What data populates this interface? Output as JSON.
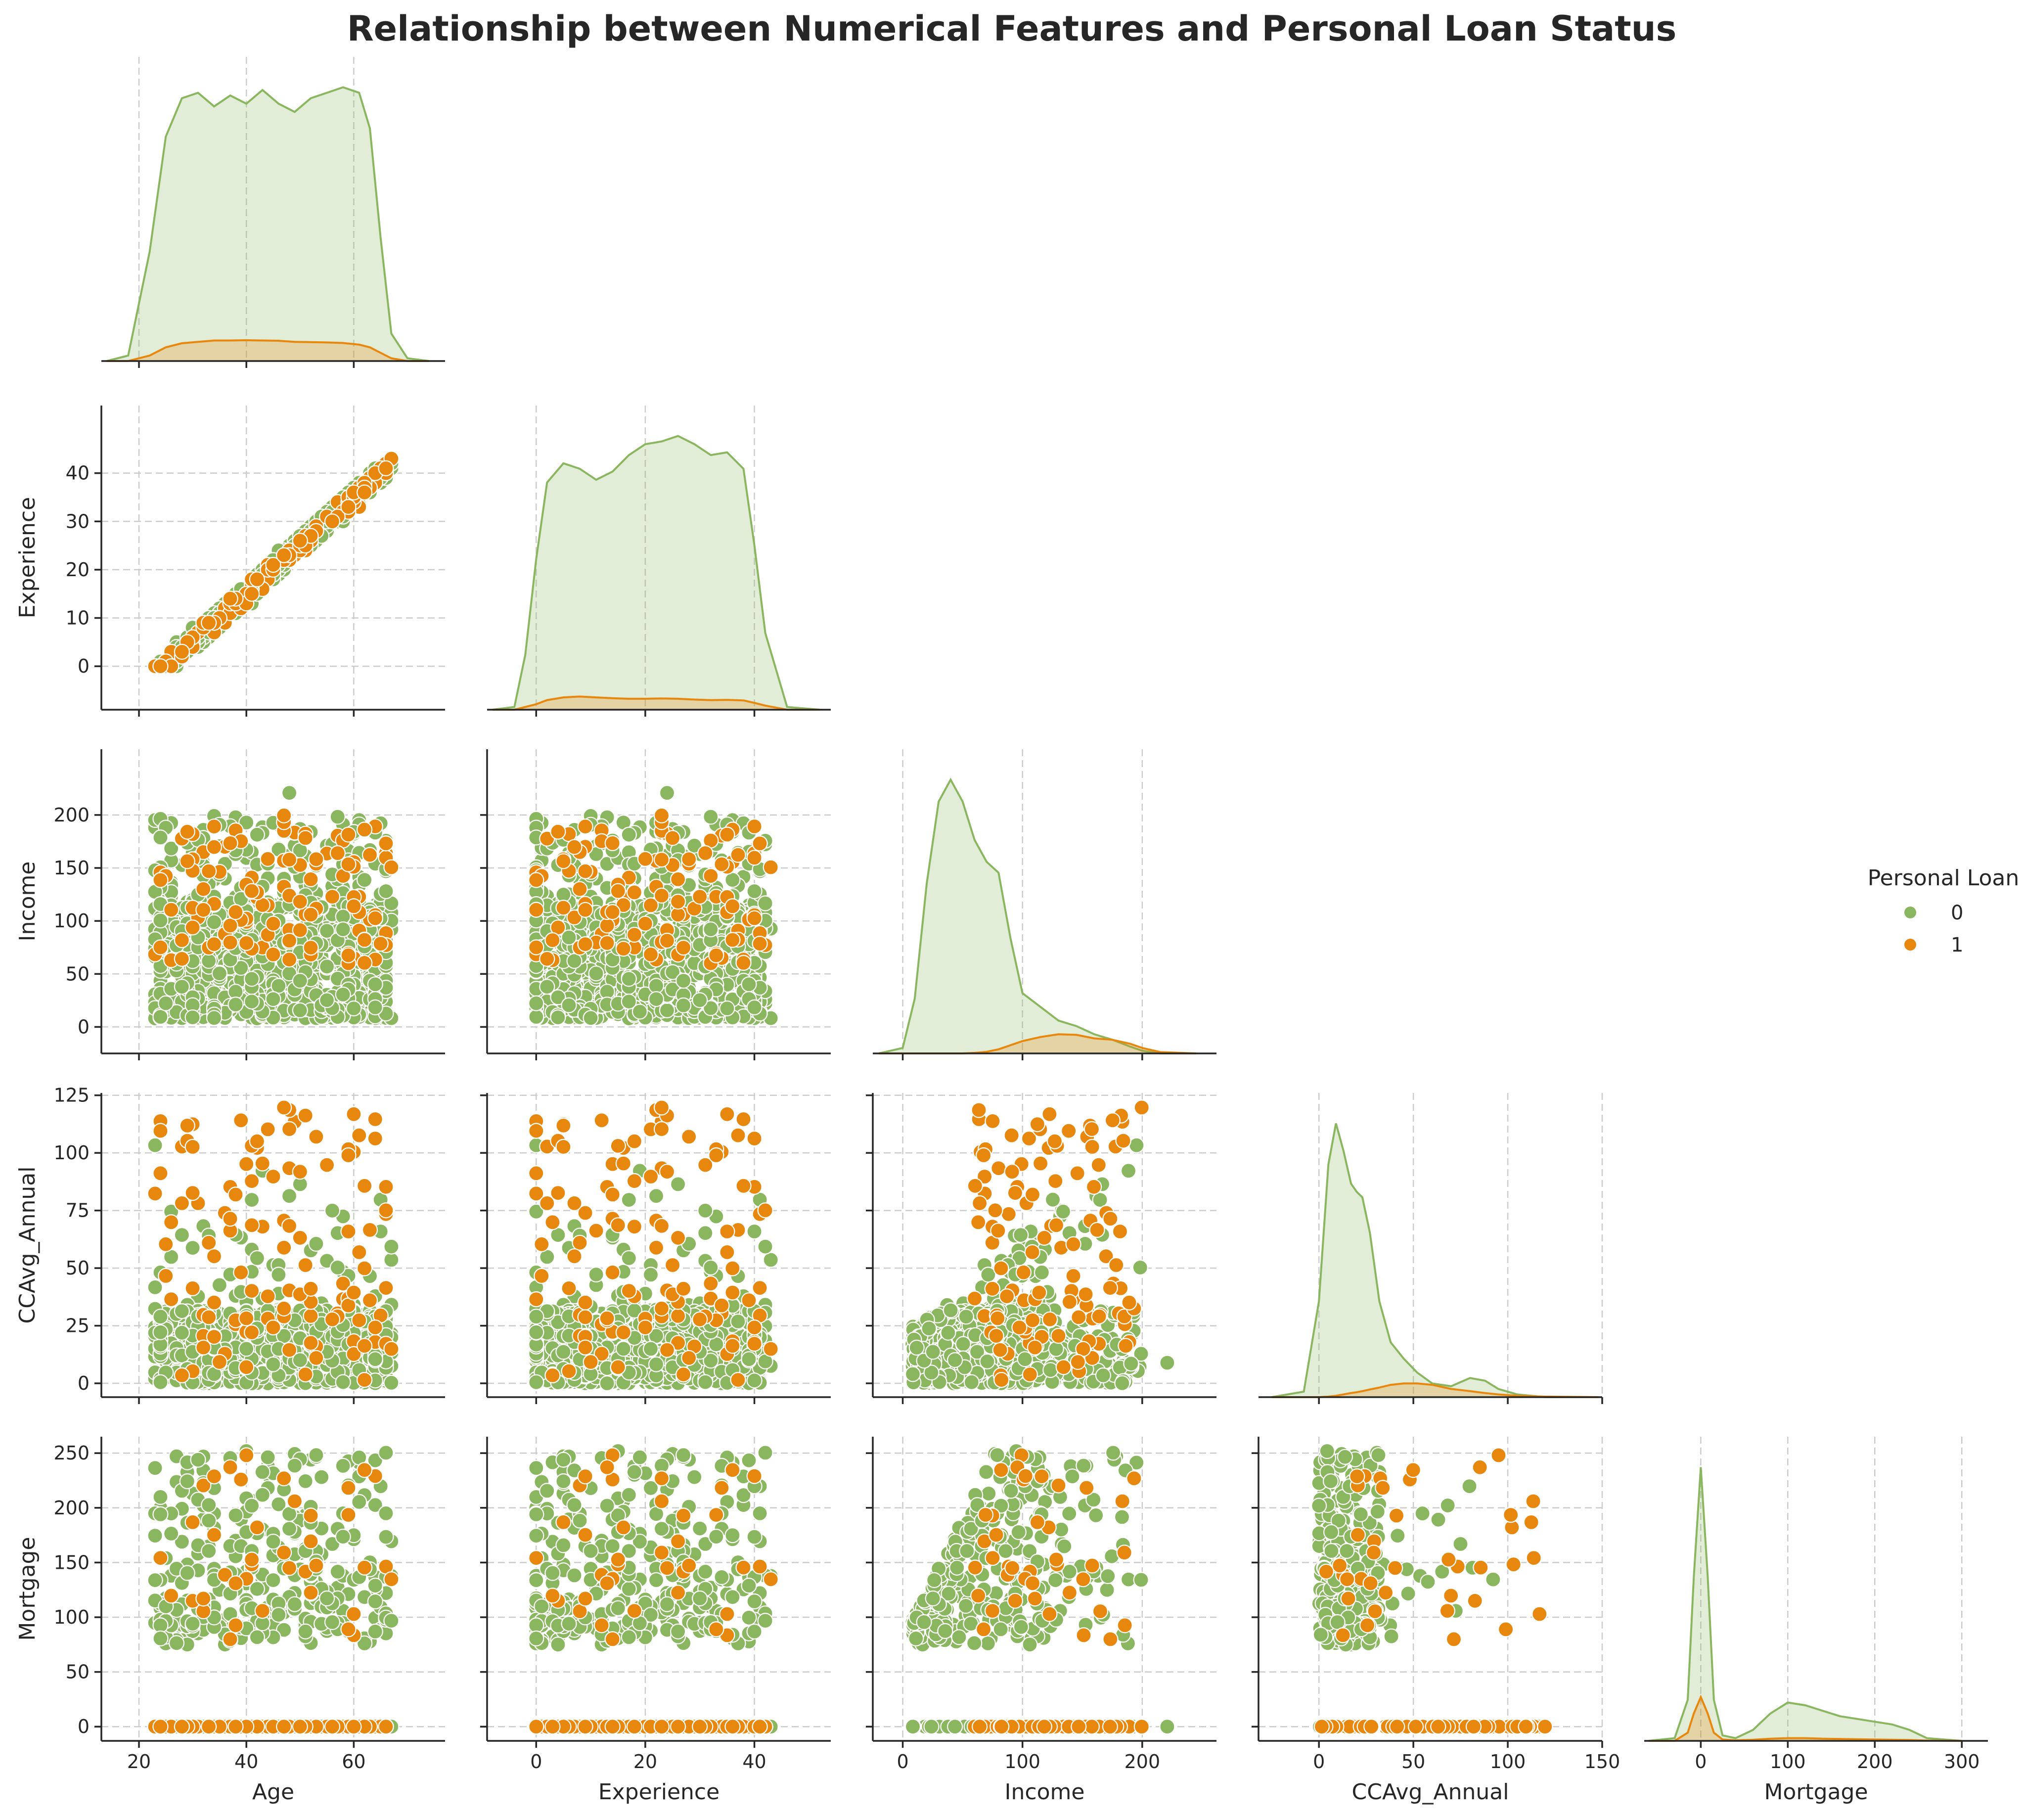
{
  "title": "Relationship between Numerical Features and Personal Loan Status",
  "legend": {
    "title": "Personal Loan",
    "placement": "right",
    "entries": [
      {
        "label": "0",
        "color": "#8ab65f"
      },
      {
        "label": "1",
        "color": "#e8870e"
      }
    ]
  },
  "chart_data": {
    "type": "scatter",
    "layout": "pairplot-lower-triangle",
    "variables": [
      "Age",
      "Experience",
      "Income",
      "CCAvg_Annual",
      "Mortgage"
    ],
    "hue": "Personal Loan",
    "grid": true,
    "axes": {
      "Age": {
        "lim": [
          13,
          77
        ],
        "ticks": [
          20,
          40,
          60
        ]
      },
      "Experience": {
        "lim": [
          -9,
          54
        ],
        "ticks": [
          0,
          10,
          20,
          30,
          40
        ],
        "xticks": [
          0,
          20,
          40
        ]
      },
      "Income": {
        "lim": [
          -25,
          262
        ],
        "ticks": [
          0,
          50,
          100,
          150,
          200
        ],
        "xticks": [
          0,
          100,
          200
        ]
      },
      "CCAvg_Annual": {
        "lim": [
          -6,
          126
        ],
        "ticks": [
          0,
          25,
          50,
          75,
          100,
          125
        ],
        "xlim": [
          -32,
          150
        ],
        "xticks": [
          0,
          50,
          100,
          150
        ]
      },
      "Mortgage": {
        "lim": [
          -13,
          265
        ],
        "ticks": [
          0,
          50,
          100,
          150,
          200,
          250
        ],
        "xlim": [
          -65,
          330
        ],
        "xticks": [
          0,
          100,
          200,
          300
        ]
      }
    },
    "distributions": {
      "type": "kde",
      "Age": {
        "x": [
          14,
          18,
          22,
          25,
          28,
          31,
          34,
          37,
          40,
          43,
          46,
          49,
          52,
          55,
          58,
          61,
          63,
          65,
          67,
          70,
          74
        ],
        "series": [
          {
            "name": "0",
            "density": [
              0.0,
              0.02,
              0.4,
              0.82,
              0.96,
              0.98,
              0.93,
              0.97,
              0.94,
              0.99,
              0.94,
              0.91,
              0.96,
              0.98,
              1.0,
              0.98,
              0.85,
              0.45,
              0.1,
              0.01,
              0.0
            ]
          },
          {
            "name": "1",
            "density": [
              0.0,
              0.0,
              0.02,
              0.05,
              0.065,
              0.07,
              0.075,
              0.075,
              0.076,
              0.075,
              0.074,
              0.07,
              0.069,
              0.068,
              0.066,
              0.06,
              0.05,
              0.03,
              0.01,
              0.0,
              0.0
            ]
          }
        ]
      },
      "Experience": {
        "x": [
          -8,
          -4,
          -2,
          0,
          2,
          5,
          8,
          11,
          14,
          17,
          20,
          23,
          26,
          29,
          32,
          35,
          38,
          40,
          42,
          46,
          52
        ],
        "series": [
          {
            "name": "0",
            "density": [
              0.0,
              0.01,
              0.2,
              0.55,
              0.83,
              0.9,
              0.88,
              0.84,
              0.87,
              0.93,
              0.97,
              0.98,
              1.0,
              0.97,
              0.93,
              0.94,
              0.88,
              0.6,
              0.28,
              0.01,
              0.0
            ]
          },
          {
            "name": "1",
            "density": [
              0.0,
              0.0,
              0.01,
              0.02,
              0.035,
              0.045,
              0.048,
              0.045,
              0.042,
              0.04,
              0.04,
              0.041,
              0.04,
              0.037,
              0.035,
              0.036,
              0.034,
              0.025,
              0.015,
              0.0,
              0.0
            ]
          }
        ]
      },
      "Income": {
        "x": [
          -20,
          0,
          10,
          20,
          30,
          40,
          50,
          60,
          70,
          80,
          90,
          100,
          115,
          130,
          145,
          160,
          175,
          190,
          200,
          215,
          245
        ],
        "series": [
          {
            "name": "0",
            "density": [
              0.0,
              0.02,
              0.2,
              0.62,
              0.92,
              1.0,
              0.92,
              0.78,
              0.7,
              0.66,
              0.42,
              0.22,
              0.17,
              0.12,
              0.1,
              0.07,
              0.05,
              0.025,
              0.01,
              0.0,
              0.0
            ]
          },
          {
            "name": "1",
            "density": [
              0.0,
              0.0,
              0.0,
              0.0,
              0.0,
              0.0,
              0.0,
              0.002,
              0.006,
              0.015,
              0.03,
              0.045,
              0.06,
              0.07,
              0.068,
              0.055,
              0.05,
              0.035,
              0.02,
              0.005,
              0.0
            ]
          }
        ]
      },
      "CCAvg_Annual": {
        "x": [
          -25,
          -8,
          0,
          5,
          9,
          13,
          17,
          20,
          23,
          27,
          32,
          38,
          45,
          52,
          60,
          70,
          80,
          88,
          95,
          105,
          120,
          148
        ],
        "series": [
          {
            "name": "0",
            "density": [
              0.0,
              0.02,
              0.35,
              0.85,
              1.0,
              0.9,
              0.78,
              0.75,
              0.73,
              0.6,
              0.35,
              0.2,
              0.14,
              0.09,
              0.05,
              0.04,
              0.07,
              0.06,
              0.03,
              0.01,
              0.0,
              0.0
            ]
          },
          {
            "name": "1",
            "density": [
              0.0,
              0.0,
              0.0,
              0.002,
              0.005,
              0.01,
              0.015,
              0.018,
              0.022,
              0.028,
              0.035,
              0.045,
              0.05,
              0.05,
              0.045,
              0.03,
              0.022,
              0.015,
              0.01,
              0.005,
              0.002,
              0.0
            ]
          }
        ]
      },
      "Mortgage": {
        "x": [
          -60,
          -30,
          -15,
          -8,
          0,
          8,
          15,
          25,
          40,
          60,
          80,
          100,
          120,
          140,
          160,
          180,
          200,
          220,
          240,
          260,
          300
        ],
        "series": [
          {
            "name": "0",
            "density": [
              0.0,
              0.01,
              0.15,
              0.6,
              1.0,
              0.6,
              0.15,
              0.02,
              0.01,
              0.04,
              0.1,
              0.14,
              0.13,
              0.11,
              0.09,
              0.08,
              0.07,
              0.06,
              0.04,
              0.01,
              0.0
            ]
          },
          {
            "name": "1",
            "density": [
              0.0,
              0.0,
              0.03,
              0.1,
              0.16,
              0.1,
              0.03,
              0.005,
              0.002,
              0.004,
              0.008,
              0.01,
              0.01,
              0.008,
              0.007,
              0.006,
              0.005,
              0.004,
              0.003,
              0.001,
              0.0
            ]
          }
        ]
      }
    },
    "scatter_summary": [
      {
        "x": "Age",
        "y": "Experience",
        "relationship": "linear",
        "Experience_approx": "Age - 25",
        "x_range": [
          23,
          67
        ],
        "y_range": [
          0,
          43
        ]
      },
      {
        "x": "Age",
        "y": "Income",
        "x_range": [
          23,
          67
        ],
        "y_range": [
          8,
          224
        ],
        "loan1_Income_range": [
          60,
          203
        ]
      },
      {
        "x": "Experience",
        "y": "Income",
        "x_range": [
          0,
          43
        ],
        "y_range": [
          8,
          224
        ],
        "loan1_Income_range": [
          60,
          203
        ]
      },
      {
        "x": "Age",
        "y": "CCAvg_Annual",
        "x_range": [
          23,
          67
        ],
        "y_range": [
          0,
          120
        ],
        "loan1_CCAvg_range": [
          0,
          120
        ]
      },
      {
        "x": "Experience",
        "y": "CCAvg_Annual",
        "x_range": [
          0,
          43
        ],
        "y_range": [
          0,
          120
        ]
      },
      {
        "x": "Income",
        "y": "CCAvg_Annual",
        "x_range": [
          8,
          224
        ],
        "y_range": [
          0,
          120
        ],
        "relationship": "upper bound increases with Income"
      },
      {
        "x": "Age",
        "y": "Mortgage",
        "x_range": [
          23,
          67
        ],
        "y_range": [
          0,
          252
        ],
        "cluster_at_zero": true,
        "nonzero_range": [
          75,
          252
        ]
      },
      {
        "x": "Experience",
        "y": "Mortgage",
        "x_range": [
          0,
          43
        ],
        "y_range": [
          0,
          252
        ],
        "cluster_at_zero": true,
        "nonzero_range": [
          75,
          252
        ]
      },
      {
        "x": "Income",
        "y": "Mortgage",
        "x_range": [
          8,
          224
        ],
        "y_range": [
          0,
          252
        ],
        "cluster_at_zero": true,
        "nonzero_range": [
          75,
          252
        ]
      },
      {
        "x": "CCAvg_Annual",
        "y": "Mortgage",
        "x_range": [
          0,
          120
        ],
        "y_range": [
          0,
          252
        ],
        "cluster_at_zero": true,
        "nonzero_range": [
          75,
          252
        ]
      }
    ]
  }
}
